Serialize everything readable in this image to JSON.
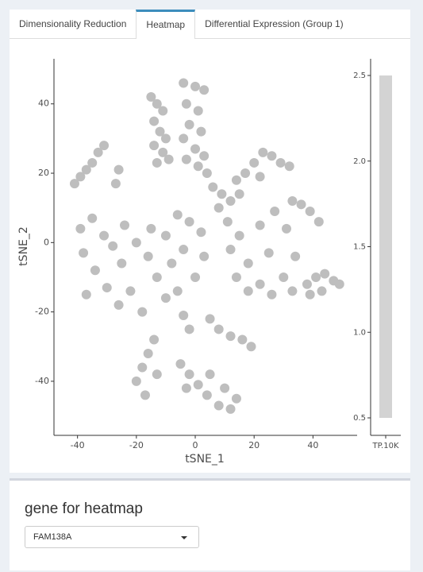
{
  "tabs": [
    "Dimensionality Reduction",
    "Heatmap",
    "Differential Expression (Group 1)"
  ],
  "active_tab": "Heatmap",
  "control": {
    "label": "gene for heatmap",
    "selected": "FAM138A"
  },
  "chart_data": {
    "type": "scatter",
    "xlabel": "tSNE_1",
    "ylabel": "tSNE_2",
    "color": "#bebebe",
    "xlim": [
      -48,
      55
    ],
    "xticks": [
      -40,
      -20,
      0,
      20,
      40
    ],
    "ylim": [
      -55.6,
      53
    ],
    "yticks": [
      -40,
      -20,
      0,
      20,
      40
    ],
    "x": [
      -15,
      -13,
      -11,
      -14,
      -12,
      -10,
      -14,
      -11,
      -9,
      -13,
      -4,
      0,
      3,
      -3,
      1,
      -2,
      2,
      -4,
      0,
      3,
      -3,
      1,
      4,
      -41,
      -39,
      -37,
      -35,
      -33,
      -31,
      -27,
      -26,
      6,
      9,
      12,
      8,
      11,
      14,
      17,
      20,
      23,
      26,
      29,
      32,
      22,
      15,
      -39,
      -35,
      -31,
      -38,
      -34,
      -30,
      -37,
      -26,
      -22,
      -25,
      -20,
      -24,
      -16,
      -13,
      -10,
      -8,
      -10,
      -6,
      -2,
      -4,
      0,
      3,
      2,
      -15,
      -28,
      -18,
      -6,
      12,
      15,
      18,
      22,
      26,
      30,
      34,
      31,
      27,
      22,
      18,
      14,
      25,
      33,
      38,
      41,
      44,
      47,
      49,
      43,
      39,
      33,
      36,
      39,
      42,
      -5,
      -2,
      1,
      4,
      8,
      12,
      14,
      10,
      5,
      -3,
      -14,
      -16,
      -18,
      -20,
      -17,
      -13,
      5,
      8,
      12,
      16,
      19,
      -2,
      -4
    ],
    "values": [
      42,
      40,
      38,
      35,
      32,
      30,
      28,
      26,
      24,
      23,
      46,
      45,
      44,
      40,
      38,
      34,
      32,
      30,
      27,
      25,
      24,
      22,
      20,
      17,
      19,
      21,
      23,
      26,
      28,
      17,
      21,
      16,
      14,
      12,
      10,
      6,
      18,
      20,
      23,
      26,
      25,
      23,
      22,
      19,
      14,
      4,
      7,
      2,
      -3,
      -8,
      -13,
      -15,
      -18,
      -14,
      -6,
      0,
      5,
      -4,
      -10,
      -16,
      -6,
      2,
      8,
      6,
      -2,
      -10,
      -4,
      3,
      4,
      -1,
      -20,
      -14,
      -2,
      2,
      -6,
      -12,
      -15,
      -10,
      -4,
      4,
      9,
      5,
      -14,
      -10,
      -3,
      -14,
      -12,
      -10,
      -9,
      -11,
      -12,
      -14,
      -15,
      12,
      11,
      9,
      6,
      -35,
      -38,
      -41,
      -44,
      -47,
      -48,
      -45,
      -42,
      -38,
      -42,
      -28,
      -32,
      -36,
      -40,
      -44,
      -38,
      -22,
      -25,
      -27,
      -28,
      -30,
      -25,
      -21
    ],
    "colorbar": {
      "title": "TP.10K",
      "color": "#d3d3d3",
      "lim": [
        0.5,
        2.5
      ],
      "ticks": [
        0.5,
        {
          "value": 1,
          "label": "1.0"
        },
        1.5,
        {
          "value": 2,
          "label": "2.0"
        },
        2.5
      ]
    }
  }
}
